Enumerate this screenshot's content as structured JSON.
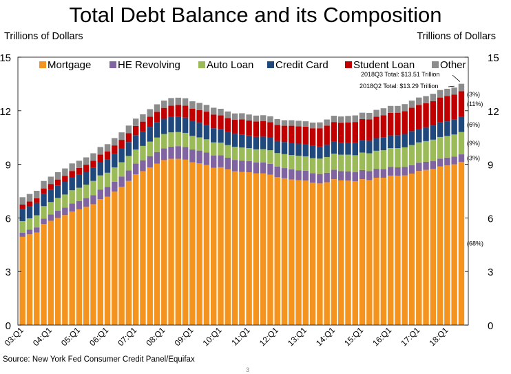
{
  "title": "Total Debt Balance and its Composition",
  "y_unit_left": "Trillions of Dollars",
  "y_unit_right": "Trillions of Dollars",
  "source": "Source: New York Fed Consumer Credit Panel/Equifax",
  "page_number": "3",
  "colors": {
    "Mortgage": "#f5931f",
    "HE Revolving": "#8064a2",
    "Auto Loan": "#9bbb59",
    "Credit Card": "#1f497d",
    "Student Loan": "#c00000",
    "Other": "#8c8c8c"
  },
  "chart_data": {
    "type": "bar",
    "stacked": true,
    "ylim": [
      0,
      15
    ],
    "yticks": [
      0,
      3,
      6,
      9,
      12,
      15
    ],
    "grid": false,
    "legend_position": "top",
    "xtick_labels": [
      "03:Q1",
      "04:Q1",
      "05:Q1",
      "06:Q1",
      "07:Q1",
      "08:Q1",
      "09:Q1",
      "10:Q1",
      "11:Q1",
      "12:Q1",
      "13:Q1",
      "14:Q1",
      "15:Q1",
      "16:Q1",
      "17:Q1",
      "18:Q1"
    ],
    "categories": [
      "03:Q1",
      "03:Q2",
      "03:Q3",
      "03:Q4",
      "04:Q1",
      "04:Q2",
      "04:Q3",
      "04:Q4",
      "05:Q1",
      "05:Q2",
      "05:Q3",
      "05:Q4",
      "06:Q1",
      "06:Q2",
      "06:Q3",
      "06:Q4",
      "07:Q1",
      "07:Q2",
      "07:Q3",
      "07:Q4",
      "08:Q1",
      "08:Q2",
      "08:Q3",
      "08:Q4",
      "09:Q1",
      "09:Q2",
      "09:Q3",
      "09:Q4",
      "10:Q1",
      "10:Q2",
      "10:Q3",
      "10:Q4",
      "11:Q1",
      "11:Q2",
      "11:Q3",
      "11:Q4",
      "12:Q1",
      "12:Q2",
      "12:Q3",
      "12:Q4",
      "13:Q1",
      "13:Q2",
      "13:Q3",
      "13:Q4",
      "14:Q1",
      "14:Q2",
      "14:Q3",
      "14:Q4",
      "15:Q1",
      "15:Q2",
      "15:Q3",
      "15:Q4",
      "16:Q1",
      "16:Q2",
      "16:Q3",
      "16:Q4",
      "17:Q1",
      "17:Q2",
      "17:Q3",
      "17:Q4",
      "18:Q1",
      "18:Q2",
      "18:Q3"
    ],
    "series": [
      {
        "name": "Mortgage",
        "values": [
          4.94,
          5.08,
          5.18,
          5.66,
          5.84,
          6.0,
          6.16,
          6.36,
          6.48,
          6.62,
          6.77,
          7.05,
          7.19,
          7.47,
          7.74,
          8.07,
          8.44,
          8.62,
          8.83,
          9.04,
          9.24,
          9.31,
          9.31,
          9.26,
          9.12,
          9.06,
          8.96,
          8.81,
          8.84,
          8.72,
          8.61,
          8.58,
          8.56,
          8.49,
          8.49,
          8.42,
          8.28,
          8.22,
          8.15,
          8.11,
          8.09,
          7.97,
          7.93,
          8.0,
          8.17,
          8.1,
          8.09,
          8.05,
          8.17,
          8.12,
          8.25,
          8.25,
          8.37,
          8.36,
          8.38,
          8.48,
          8.63,
          8.69,
          8.74,
          8.88,
          8.94,
          9.0,
          9.14
        ]
      },
      {
        "name": "HE Revolving",
        "values": [
          0.24,
          0.26,
          0.29,
          0.3,
          0.35,
          0.4,
          0.42,
          0.45,
          0.47,
          0.49,
          0.51,
          0.54,
          0.55,
          0.56,
          0.58,
          0.59,
          0.6,
          0.61,
          0.63,
          0.65,
          0.66,
          0.68,
          0.71,
          0.71,
          0.71,
          0.71,
          0.7,
          0.69,
          0.67,
          0.65,
          0.64,
          0.63,
          0.62,
          0.61,
          0.61,
          0.61,
          0.59,
          0.57,
          0.57,
          0.56,
          0.55,
          0.54,
          0.53,
          0.53,
          0.53,
          0.52,
          0.52,
          0.51,
          0.51,
          0.5,
          0.5,
          0.49,
          0.48,
          0.47,
          0.47,
          0.47,
          0.46,
          0.45,
          0.45,
          0.44,
          0.44,
          0.43,
          0.42
        ]
      },
      {
        "name": "Auto Loan",
        "values": [
          0.64,
          0.64,
          0.68,
          0.7,
          0.7,
          0.72,
          0.73,
          0.74,
          0.74,
          0.75,
          0.79,
          0.79,
          0.79,
          0.8,
          0.8,
          0.81,
          0.79,
          0.8,
          0.81,
          0.81,
          0.8,
          0.8,
          0.79,
          0.79,
          0.76,
          0.74,
          0.74,
          0.73,
          0.71,
          0.71,
          0.73,
          0.73,
          0.73,
          0.74,
          0.75,
          0.76,
          0.76,
          0.78,
          0.8,
          0.81,
          0.81,
          0.84,
          0.86,
          0.88,
          0.9,
          0.92,
          0.93,
          0.95,
          0.98,
          1.0,
          1.01,
          1.05,
          1.06,
          1.08,
          1.1,
          1.13,
          1.14,
          1.16,
          1.19,
          1.21,
          1.21,
          1.24,
          1.25
        ]
      },
      {
        "name": "Credit Card",
        "values": [
          0.69,
          0.69,
          0.69,
          0.7,
          0.7,
          0.7,
          0.71,
          0.72,
          0.72,
          0.72,
          0.73,
          0.74,
          0.74,
          0.76,
          0.77,
          0.78,
          0.8,
          0.81,
          0.83,
          0.85,
          0.85,
          0.86,
          0.86,
          0.86,
          0.84,
          0.82,
          0.81,
          0.79,
          0.76,
          0.74,
          0.73,
          0.73,
          0.7,
          0.7,
          0.7,
          0.7,
          0.68,
          0.68,
          0.68,
          0.68,
          0.67,
          0.68,
          0.67,
          0.68,
          0.66,
          0.67,
          0.68,
          0.7,
          0.68,
          0.7,
          0.71,
          0.73,
          0.71,
          0.72,
          0.75,
          0.78,
          0.76,
          0.78,
          0.8,
          0.83,
          0.82,
          0.83,
          0.84
        ]
      },
      {
        "name": "Student Loan",
        "values": [
          0.24,
          0.25,
          0.26,
          0.29,
          0.31,
          0.33,
          0.34,
          0.36,
          0.39,
          0.4,
          0.4,
          0.43,
          0.45,
          0.47,
          0.48,
          0.5,
          0.52,
          0.55,
          0.57,
          0.59,
          0.61,
          0.64,
          0.65,
          0.67,
          0.69,
          0.71,
          0.74,
          0.76,
          0.76,
          0.77,
          0.78,
          0.84,
          0.85,
          0.86,
          0.87,
          0.87,
          0.9,
          0.91,
          0.96,
          0.97,
          0.99,
          0.99,
          1.03,
          1.08,
          1.11,
          1.12,
          1.13,
          1.16,
          1.19,
          1.19,
          1.2,
          1.23,
          1.26,
          1.26,
          1.28,
          1.31,
          1.34,
          1.34,
          1.36,
          1.38,
          1.41,
          1.41,
          1.44
        ]
      },
      {
        "name": "Other",
        "values": [
          0.41,
          0.42,
          0.42,
          0.42,
          0.41,
          0.41,
          0.41,
          0.42,
          0.4,
          0.41,
          0.42,
          0.42,
          0.41,
          0.41,
          0.42,
          0.42,
          0.41,
          0.41,
          0.42,
          0.42,
          0.41,
          0.42,
          0.41,
          0.41,
          0.41,
          0.4,
          0.38,
          0.39,
          0.37,
          0.37,
          0.36,
          0.35,
          0.33,
          0.33,
          0.33,
          0.33,
          0.32,
          0.31,
          0.31,
          0.31,
          0.3,
          0.32,
          0.33,
          0.34,
          0.35,
          0.35,
          0.36,
          0.37,
          0.36,
          0.37,
          0.38,
          0.39,
          0.39,
          0.38,
          0.39,
          0.4,
          0.41,
          0.4,
          0.41,
          0.42,
          0.41,
          0.39,
          0.42
        ]
      }
    ],
    "annotations": {
      "q3_total": "2018Q3 Total: $13.51 Trillion",
      "q2_total": "2018Q2 Total: $13.29 Trillion",
      "shares": [
        {
          "series": "Other",
          "text": "(3%)"
        },
        {
          "series": "Student Loan",
          "text": "(11%)"
        },
        {
          "series": "Credit Card",
          "text": "(6%)"
        },
        {
          "series": "Auto Loan",
          "text": "(9%)"
        },
        {
          "series": "HE Revolving",
          "text": "(3%)"
        },
        {
          "series": "Mortgage",
          "text": "(68%)"
        }
      ]
    }
  }
}
